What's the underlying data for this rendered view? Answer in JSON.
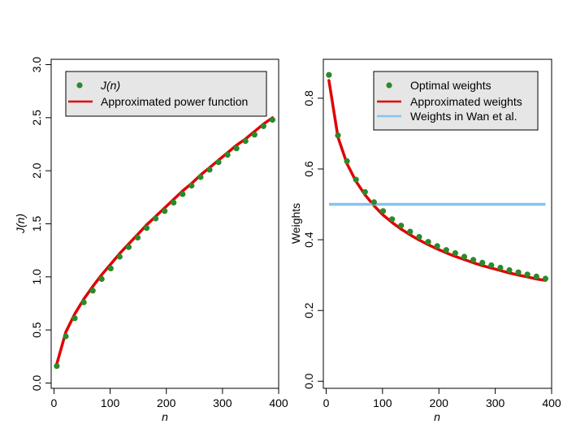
{
  "chart_data": [
    {
      "type": "scatter",
      "xlabel": "n",
      "ylabel": "J(n)",
      "xlim": [
        -5,
        400
      ],
      "ylim": [
        -0.05,
        3.05
      ],
      "xticks": [
        "0",
        "100",
        "200",
        "300",
        "400"
      ],
      "yticks": [
        "0.0",
        "0.5",
        "1.0",
        "1.5",
        "2.0",
        "2.5",
        "3.0"
      ],
      "legend_position": "top",
      "colors": {
        "points": "#2a8a2a",
        "power_line": "#e00000"
      },
      "legend": [
        "J(n)",
        "Approximated power function"
      ],
      "series": [
        {
          "name": "J(n)",
          "kind": "points",
          "x": [
            5,
            21,
            37,
            53,
            69,
            85,
            101,
            117,
            133,
            149,
            165,
            181,
            197,
            213,
            229,
            245,
            261,
            277,
            293,
            309,
            325,
            341,
            357,
            373,
            389
          ],
          "y": [
            0.16,
            0.44,
            0.61,
            0.76,
            0.87,
            0.98,
            1.08,
            1.19,
            1.28,
            1.37,
            1.46,
            1.55,
            1.62,
            1.7,
            1.78,
            1.86,
            1.94,
            2.01,
            2.08,
            2.15,
            2.21,
            2.28,
            2.34,
            2.42,
            2.48
          ]
        },
        {
          "name": "Approximated power function",
          "kind": "line",
          "x": [
            5,
            21,
            37,
            53,
            69,
            85,
            101,
            117,
            133,
            149,
            165,
            181,
            197,
            213,
            229,
            245,
            261,
            277,
            293,
            309,
            325,
            341,
            357,
            373,
            389
          ],
          "y": [
            0.18,
            0.48,
            0.65,
            0.79,
            0.91,
            1.02,
            1.12,
            1.22,
            1.31,
            1.4,
            1.49,
            1.57,
            1.65,
            1.73,
            1.81,
            1.88,
            1.96,
            2.03,
            2.1,
            2.17,
            2.24,
            2.3,
            2.37,
            2.44,
            2.5
          ]
        }
      ]
    },
    {
      "type": "scatter",
      "xlabel": "n",
      "ylabel": "Weights",
      "xlim": [
        -5,
        400
      ],
      "ylim": [
        -0.02,
        0.91
      ],
      "xticks": [
        "0",
        "100",
        "200",
        "300",
        "400"
      ],
      "yticks": [
        "0.0",
        "0.2",
        "0.4",
        "0.6",
        "0.8"
      ],
      "legend_position": "top-right",
      "colors": {
        "points": "#2a8a2a",
        "approx_line": "#e00000",
        "wan_line": "#87c3ea"
      },
      "legend": [
        "Optimal weights",
        "Approximated weights",
        "Weights in Wan et al."
      ],
      "series": [
        {
          "name": "Optimal weights",
          "kind": "points",
          "x": [
            5,
            21,
            37,
            53,
            69,
            85,
            101,
            117,
            133,
            149,
            165,
            181,
            197,
            213,
            229,
            245,
            261,
            277,
            293,
            309,
            325,
            341,
            357,
            373,
            389
          ],
          "y": [
            0.866,
            0.695,
            0.622,
            0.57,
            0.535,
            0.506,
            0.481,
            0.458,
            0.44,
            0.423,
            0.408,
            0.394,
            0.382,
            0.371,
            0.362,
            0.352,
            0.343,
            0.335,
            0.328,
            0.321,
            0.314,
            0.308,
            0.302,
            0.296,
            0.29
          ]
        },
        {
          "name": "Approximated weights",
          "kind": "line",
          "x": [
            5,
            21,
            37,
            53,
            69,
            85,
            101,
            117,
            133,
            149,
            165,
            181,
            197,
            213,
            229,
            245,
            261,
            277,
            293,
            309,
            325,
            341,
            357,
            373,
            389
          ],
          "y": [
            0.85,
            0.69,
            0.615,
            0.565,
            0.527,
            0.496,
            0.47,
            0.449,
            0.43,
            0.414,
            0.399,
            0.386,
            0.374,
            0.363,
            0.353,
            0.344,
            0.335,
            0.327,
            0.32,
            0.313,
            0.306,
            0.3,
            0.295,
            0.289,
            0.285
          ]
        },
        {
          "name": "Weights in Wan et al.",
          "kind": "hline",
          "x": [
            5,
            389
          ],
          "y": [
            0.5,
            0.5
          ]
        }
      ]
    }
  ]
}
